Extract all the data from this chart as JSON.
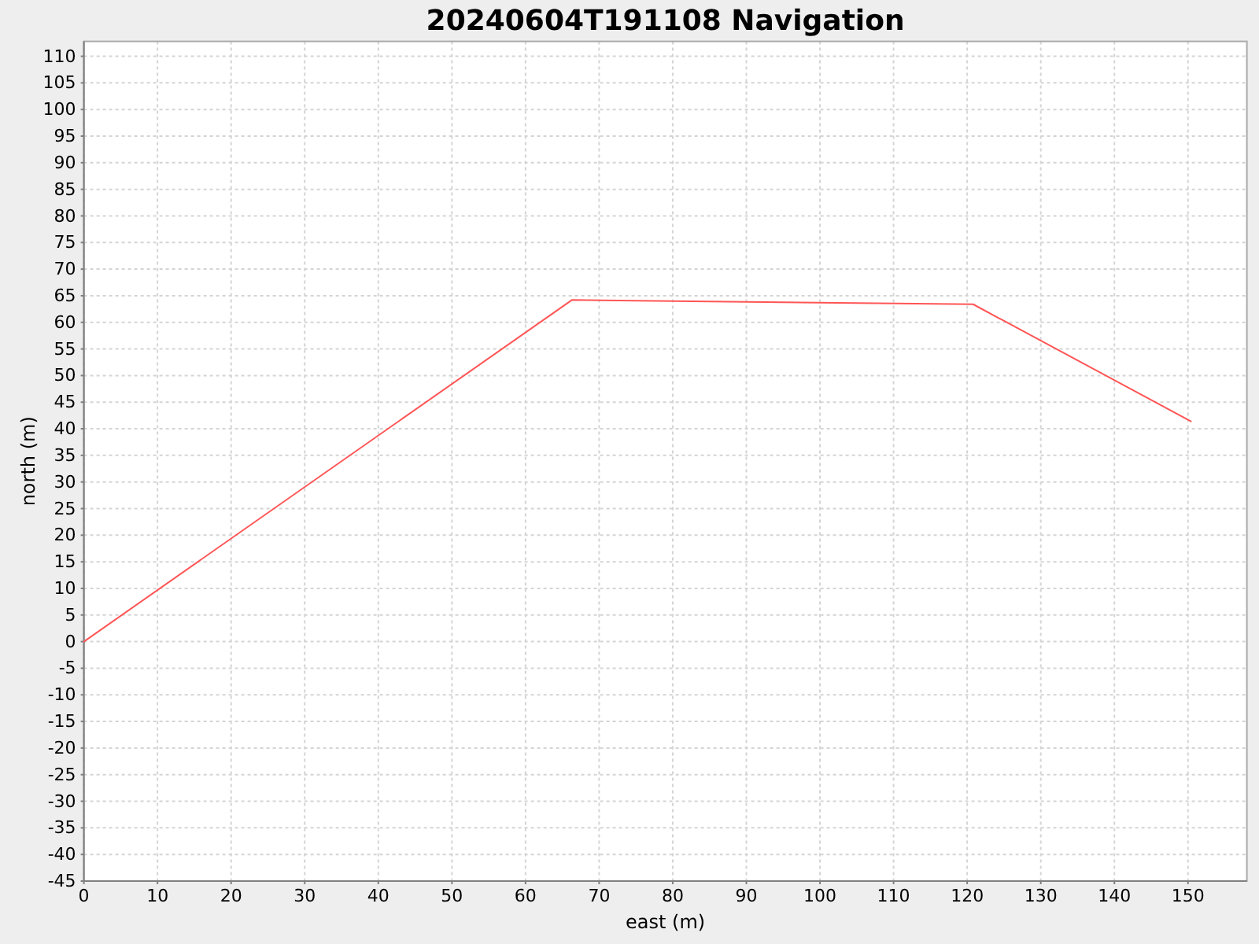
{
  "chart_data": {
    "type": "line",
    "title": "20240604T191108 Navigation",
    "xlabel": "east (m)",
    "ylabel": "north (m)",
    "x": [
      0,
      66.3,
      120.8,
      150.4
    ],
    "series": [
      {
        "color": "#ff5555",
        "values": [
          0,
          64.2,
          63.4,
          41.4
        ]
      }
    ],
    "xlim": [
      0,
      158
    ],
    "ylim": [
      -45,
      112.8
    ],
    "xticks": [
      0,
      10,
      20,
      30,
      40,
      50,
      60,
      70,
      80,
      90,
      100,
      110,
      120,
      130,
      140,
      150
    ],
    "yticks": [
      -45,
      -40,
      -35,
      -30,
      -25,
      -20,
      -15,
      -10,
      -5,
      0,
      5,
      10,
      15,
      20,
      25,
      30,
      35,
      40,
      45,
      50,
      55,
      60,
      65,
      70,
      75,
      80,
      85,
      90,
      95,
      100,
      105,
      110
    ],
    "grid": true,
    "marker": "none",
    "line_style": "solid"
  }
}
